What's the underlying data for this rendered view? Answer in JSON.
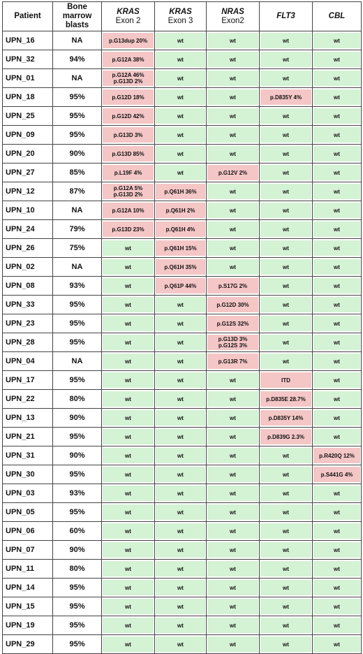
{
  "headers": [
    {
      "lines": [
        "Patient"
      ],
      "italic": false
    },
    {
      "lines": [
        "Bone",
        "marrow",
        "blasts"
      ],
      "italic": false
    },
    {
      "gene": "KRAS",
      "sub": "Exon 2"
    },
    {
      "gene": "KRAS",
      "sub": "Exon 3"
    },
    {
      "gene": "NRAS",
      "sub": "Exon2"
    },
    {
      "gene": "FLT3",
      "sub": ""
    },
    {
      "gene": "CBL",
      "sub": ""
    }
  ],
  "rows": [
    {
      "patient": "UPN_16",
      "blasts": "NA",
      "kras2": [
        "p.G13dup 20%"
      ],
      "kras3": [
        "wt"
      ],
      "nras2": [
        "wt"
      ],
      "flt3": [
        "wt"
      ],
      "cbl": [
        "wt"
      ]
    },
    {
      "patient": "UPN_32",
      "blasts": "94%",
      "kras2": [
        "p.G12A 38%"
      ],
      "kras3": [
        "wt"
      ],
      "nras2": [
        "wt"
      ],
      "flt3": [
        "wt"
      ],
      "cbl": [
        "wt"
      ]
    },
    {
      "patient": "UPN_01",
      "blasts": "NA",
      "kras2": [
        "p.G12A 46%",
        "p.G13D 2%"
      ],
      "kras3": [
        "wt"
      ],
      "nras2": [
        "wt"
      ],
      "flt3": [
        "wt"
      ],
      "cbl": [
        "wt"
      ]
    },
    {
      "patient": "UPN_18",
      "blasts": "95%",
      "kras2": [
        "p.G12D 18%"
      ],
      "kras3": [
        "wt"
      ],
      "nras2": [
        "wt"
      ],
      "flt3": [
        "p.D835Y 4%"
      ],
      "cbl": [
        "wt"
      ]
    },
    {
      "patient": "UPN_25",
      "blasts": "95%",
      "kras2": [
        "p.G12D 42%"
      ],
      "kras3": [
        "wt"
      ],
      "nras2": [
        "wt"
      ],
      "flt3": [
        "wt"
      ],
      "cbl": [
        "wt"
      ]
    },
    {
      "patient": "UPN_09",
      "blasts": "95%",
      "kras2": [
        "p.G13D 3%"
      ],
      "kras3": [
        "wt"
      ],
      "nras2": [
        "wt"
      ],
      "flt3": [
        "wt"
      ],
      "cbl": [
        "wt"
      ]
    },
    {
      "patient": "UPN_20",
      "blasts": "90%",
      "kras2": [
        "p.G13D 85%"
      ],
      "kras3": [
        "wt"
      ],
      "nras2": [
        "wt"
      ],
      "flt3": [
        "wt"
      ],
      "cbl": [
        "wt"
      ]
    },
    {
      "patient": "UPN_27",
      "blasts": "85%",
      "kras2": [
        "p.L19F 4%"
      ],
      "kras3": [
        "wt"
      ],
      "nras2": [
        "p.G12V 2%"
      ],
      "flt3": [
        "wt"
      ],
      "cbl": [
        "wt"
      ]
    },
    {
      "patient": "UPN_12",
      "blasts": "87%",
      "kras2": [
        "p.G12A 5%",
        "p.G13D 2%"
      ],
      "kras3": [
        "p.Q61H 36%"
      ],
      "nras2": [
        "wt"
      ],
      "flt3": [
        "wt"
      ],
      "cbl": [
        "wt"
      ]
    },
    {
      "patient": "UPN_10",
      "blasts": "NA",
      "kras2": [
        "p.G12A 10%"
      ],
      "kras3": [
        "p.Q61H 2%"
      ],
      "nras2": [
        "wt"
      ],
      "flt3": [
        "wt"
      ],
      "cbl": [
        "wt"
      ]
    },
    {
      "patient": "UPN_24",
      "blasts": "79%",
      "kras2": [
        "p.G13D 23%"
      ],
      "kras3": [
        "p.Q61H 4%"
      ],
      "nras2": [
        "wt"
      ],
      "flt3": [
        "wt"
      ],
      "cbl": [
        "wt"
      ]
    },
    {
      "patient": "UPN_26",
      "blasts": "75%",
      "kras2": [
        "wt"
      ],
      "kras3": [
        "p.Q61H 15%"
      ],
      "nras2": [
        "wt"
      ],
      "flt3": [
        "wt"
      ],
      "cbl": [
        "wt"
      ]
    },
    {
      "patient": "UPN_02",
      "blasts": "NA",
      "kras2": [
        "wt"
      ],
      "kras3": [
        "p.Q61H 35%"
      ],
      "nras2": [
        "wt"
      ],
      "flt3": [
        "wt"
      ],
      "cbl": [
        "wt"
      ]
    },
    {
      "patient": "UPN_08",
      "blasts": "93%",
      "kras2": [
        "wt"
      ],
      "kras3": [
        "p.Q61P 44%"
      ],
      "nras2": [
        "p.S17G 2%"
      ],
      "flt3": [
        "wt"
      ],
      "cbl": [
        "wt"
      ]
    },
    {
      "patient": "UPN_33",
      "blasts": "95%",
      "kras2": [
        "wt"
      ],
      "kras3": [
        "wt"
      ],
      "nras2": [
        "p.G12D 30%"
      ],
      "flt3": [
        "wt"
      ],
      "cbl": [
        "wt"
      ]
    },
    {
      "patient": "UPN_23",
      "blasts": "95%",
      "kras2": [
        "wt"
      ],
      "kras3": [
        "wt"
      ],
      "nras2": [
        "p.G12S 32%"
      ],
      "flt3": [
        "wt"
      ],
      "cbl": [
        "wt"
      ]
    },
    {
      "patient": "UPN_28",
      "blasts": "95%",
      "kras2": [
        "wt"
      ],
      "kras3": [
        "wt"
      ],
      "nras2": [
        "p.G13D 3%",
        "p.G12S 3%"
      ],
      "flt3": [
        "wt"
      ],
      "cbl": [
        "wt"
      ]
    },
    {
      "patient": "UPN_04",
      "blasts": "NA",
      "kras2": [
        "wt"
      ],
      "kras3": [
        "wt"
      ],
      "nras2": [
        "p.G13R 7%"
      ],
      "flt3": [
        "wt"
      ],
      "cbl": [
        "wt"
      ]
    },
    {
      "patient": "UPN_17",
      "blasts": "95%",
      "kras2": [
        "wt"
      ],
      "kras3": [
        "wt"
      ],
      "nras2": [
        "wt"
      ],
      "flt3": [
        "ITD"
      ],
      "cbl": [
        "wt"
      ]
    },
    {
      "patient": "UPN_22",
      "blasts": "80%",
      "kras2": [
        "wt"
      ],
      "kras3": [
        "wt"
      ],
      "nras2": [
        "wt"
      ],
      "flt3": [
        "p.D835E 28.7%"
      ],
      "cbl": [
        "wt"
      ]
    },
    {
      "patient": "UPN_13",
      "blasts": "90%",
      "kras2": [
        "wt"
      ],
      "kras3": [
        "wt"
      ],
      "nras2": [
        "wt"
      ],
      "flt3": [
        "p.D835Y 14%"
      ],
      "cbl": [
        "wt"
      ]
    },
    {
      "patient": "UPN_21",
      "blasts": "95%",
      "kras2": [
        "wt"
      ],
      "kras3": [
        "wt"
      ],
      "nras2": [
        "wt"
      ],
      "flt3": [
        "p.D839G 2.3%"
      ],
      "cbl": [
        "wt"
      ]
    },
    {
      "patient": "UPN_31",
      "blasts": "90%",
      "kras2": [
        "wt"
      ],
      "kras3": [
        "wt"
      ],
      "nras2": [
        "wt"
      ],
      "flt3": [
        "wt"
      ],
      "cbl": [
        "p.R420Q 12%"
      ]
    },
    {
      "patient": "UPN_30",
      "blasts": "95%",
      "kras2": [
        "wt"
      ],
      "kras3": [
        "wt"
      ],
      "nras2": [
        "wt"
      ],
      "flt3": [
        "wt"
      ],
      "cbl": [
        "p.S441G 4%"
      ]
    },
    {
      "patient": "UPN_03",
      "blasts": "93%",
      "kras2": [
        "wt"
      ],
      "kras3": [
        "wt"
      ],
      "nras2": [
        "wt"
      ],
      "flt3": [
        "wt"
      ],
      "cbl": [
        "wt"
      ]
    },
    {
      "patient": "UPN_05",
      "blasts": "95%",
      "kras2": [
        "wt"
      ],
      "kras3": [
        "wt"
      ],
      "nras2": [
        "wt"
      ],
      "flt3": [
        "wt"
      ],
      "cbl": [
        "wt"
      ]
    },
    {
      "patient": "UPN_06",
      "blasts": "60%",
      "kras2": [
        "wt"
      ],
      "kras3": [
        "wt"
      ],
      "nras2": [
        "wt"
      ],
      "flt3": [
        "wt"
      ],
      "cbl": [
        "wt"
      ]
    },
    {
      "patient": "UPN_07",
      "blasts": "90%",
      "kras2": [
        "wt"
      ],
      "kras3": [
        "wt"
      ],
      "nras2": [
        "wt"
      ],
      "flt3": [
        "wt"
      ],
      "cbl": [
        "wt"
      ]
    },
    {
      "patient": "UPN_11",
      "blasts": "80%",
      "kras2": [
        "wt"
      ],
      "kras3": [
        "wt"
      ],
      "nras2": [
        "wt"
      ],
      "flt3": [
        "wt"
      ],
      "cbl": [
        "wt"
      ]
    },
    {
      "patient": "UPN_14",
      "blasts": "95%",
      "kras2": [
        "wt"
      ],
      "kras3": [
        "wt"
      ],
      "nras2": [
        "wt"
      ],
      "flt3": [
        "wt"
      ],
      "cbl": [
        "wt"
      ]
    },
    {
      "patient": "UPN_15",
      "blasts": "95%",
      "kras2": [
        "wt"
      ],
      "kras3": [
        "wt"
      ],
      "nras2": [
        "wt"
      ],
      "flt3": [
        "wt"
      ],
      "cbl": [
        "wt"
      ]
    },
    {
      "patient": "UPN_19",
      "blasts": "95%",
      "kras2": [
        "wt"
      ],
      "kras3": [
        "wt"
      ],
      "nras2": [
        "wt"
      ],
      "flt3": [
        "wt"
      ],
      "cbl": [
        "wt"
      ]
    },
    {
      "patient": "UPN_29",
      "blasts": "95%",
      "kras2": [
        "wt"
      ],
      "kras3": [
        "wt"
      ],
      "nras2": [
        "wt"
      ],
      "flt3": [
        "wt"
      ],
      "cbl": [
        "wt"
      ]
    }
  ],
  "colors": {
    "wild_type": "#d4f2d4",
    "mutated": "#f4c6c6",
    "border": "#444444"
  }
}
